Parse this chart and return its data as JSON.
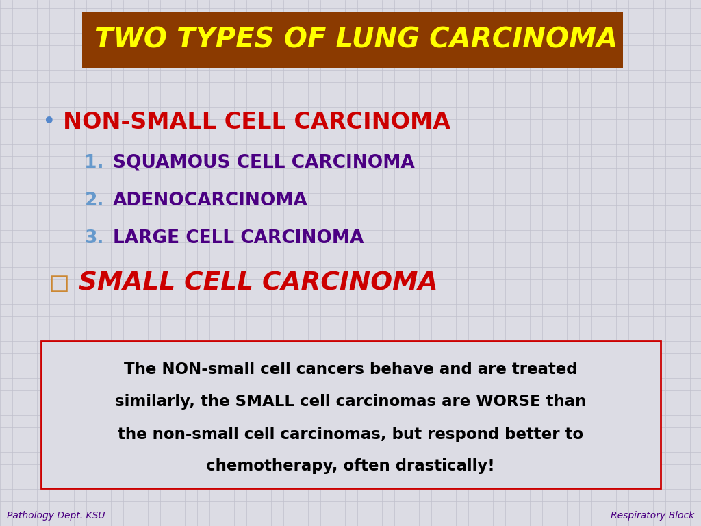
{
  "background_color": "#dcdce4",
  "grid_color": "#c0c0cc",
  "title": "TWO TYPES OF LUNG CARCINOMA",
  "title_bg_color": "#8B3A00",
  "title_text_color": "#FFFF00",
  "bullet1_text": "NON-SMALL CELL CARCINOMA",
  "bullet1_color": "#CC0000",
  "bullet1_bullet_color": "#5588CC",
  "sub_items": [
    {
      "num": "1.",
      "text": "SQUAMOUS CELL CARCINOMA",
      "num_color": "#6699CC",
      "text_color": "#4B0082"
    },
    {
      "num": "2.",
      "text": "ADENOCARCINOMA",
      "num_color": "#6699CC",
      "text_color": "#4B0082"
    },
    {
      "num": "3.",
      "text": "LARGE CELL CARCINOMA",
      "num_color": "#6699CC",
      "text_color": "#4B0082"
    }
  ],
  "bullet2_text": "SMALL CELL CARCINOMA",
  "bullet2_color": "#CC0000",
  "bullet2_box_color": "#CC8833",
  "note_text_line1": "The NON-small cell cancers behave and are treated",
  "note_text_line2": "similarly, the SMALL cell carcinomas are WORSE than",
  "note_text_line3": "the non-small cell carcinomas, but respond better to",
  "note_text_line4": "chemotherapy, often drastically!",
  "note_box_border_color": "#CC0000",
  "note_box_fill_color": "#dcdce4",
  "note_text_color": "#000000",
  "footer_left": "Pathology Dept. KSU",
  "footer_right": "Respiratory Block",
  "footer_color": "#4B0082"
}
